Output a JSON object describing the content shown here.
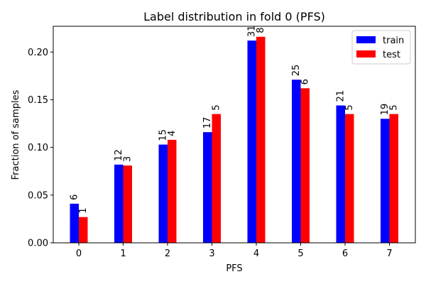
{
  "chart_data": {
    "type": "bar",
    "title": "Label distribution in fold 0 (PFS)",
    "xlabel": "PFS",
    "ylabel": "Fraction of samples",
    "categories": [
      "0",
      "1",
      "2",
      "3",
      "4",
      "5",
      "6",
      "7"
    ],
    "ylim": [
      0,
      0.227
    ],
    "yticks": [
      "0.00",
      "0.05",
      "0.10",
      "0.15",
      "0.20"
    ],
    "grid": false,
    "legend_position": "top-right",
    "series": [
      {
        "name": "train",
        "color": "#0000ff",
        "values": [
          0.041,
          0.082,
          0.103,
          0.116,
          0.212,
          0.171,
          0.144,
          0.13
        ],
        "counts": [
          "6",
          "12",
          "15",
          "17",
          "31",
          "25",
          "21",
          "19"
        ]
      },
      {
        "name": "test",
        "color": "#ff0000",
        "values": [
          0.027,
          0.081,
          0.108,
          0.135,
          0.216,
          0.162,
          0.135,
          0.135
        ],
        "counts": [
          "1",
          "3",
          "4",
          "5",
          "8",
          "6",
          "5",
          "5"
        ]
      }
    ]
  }
}
